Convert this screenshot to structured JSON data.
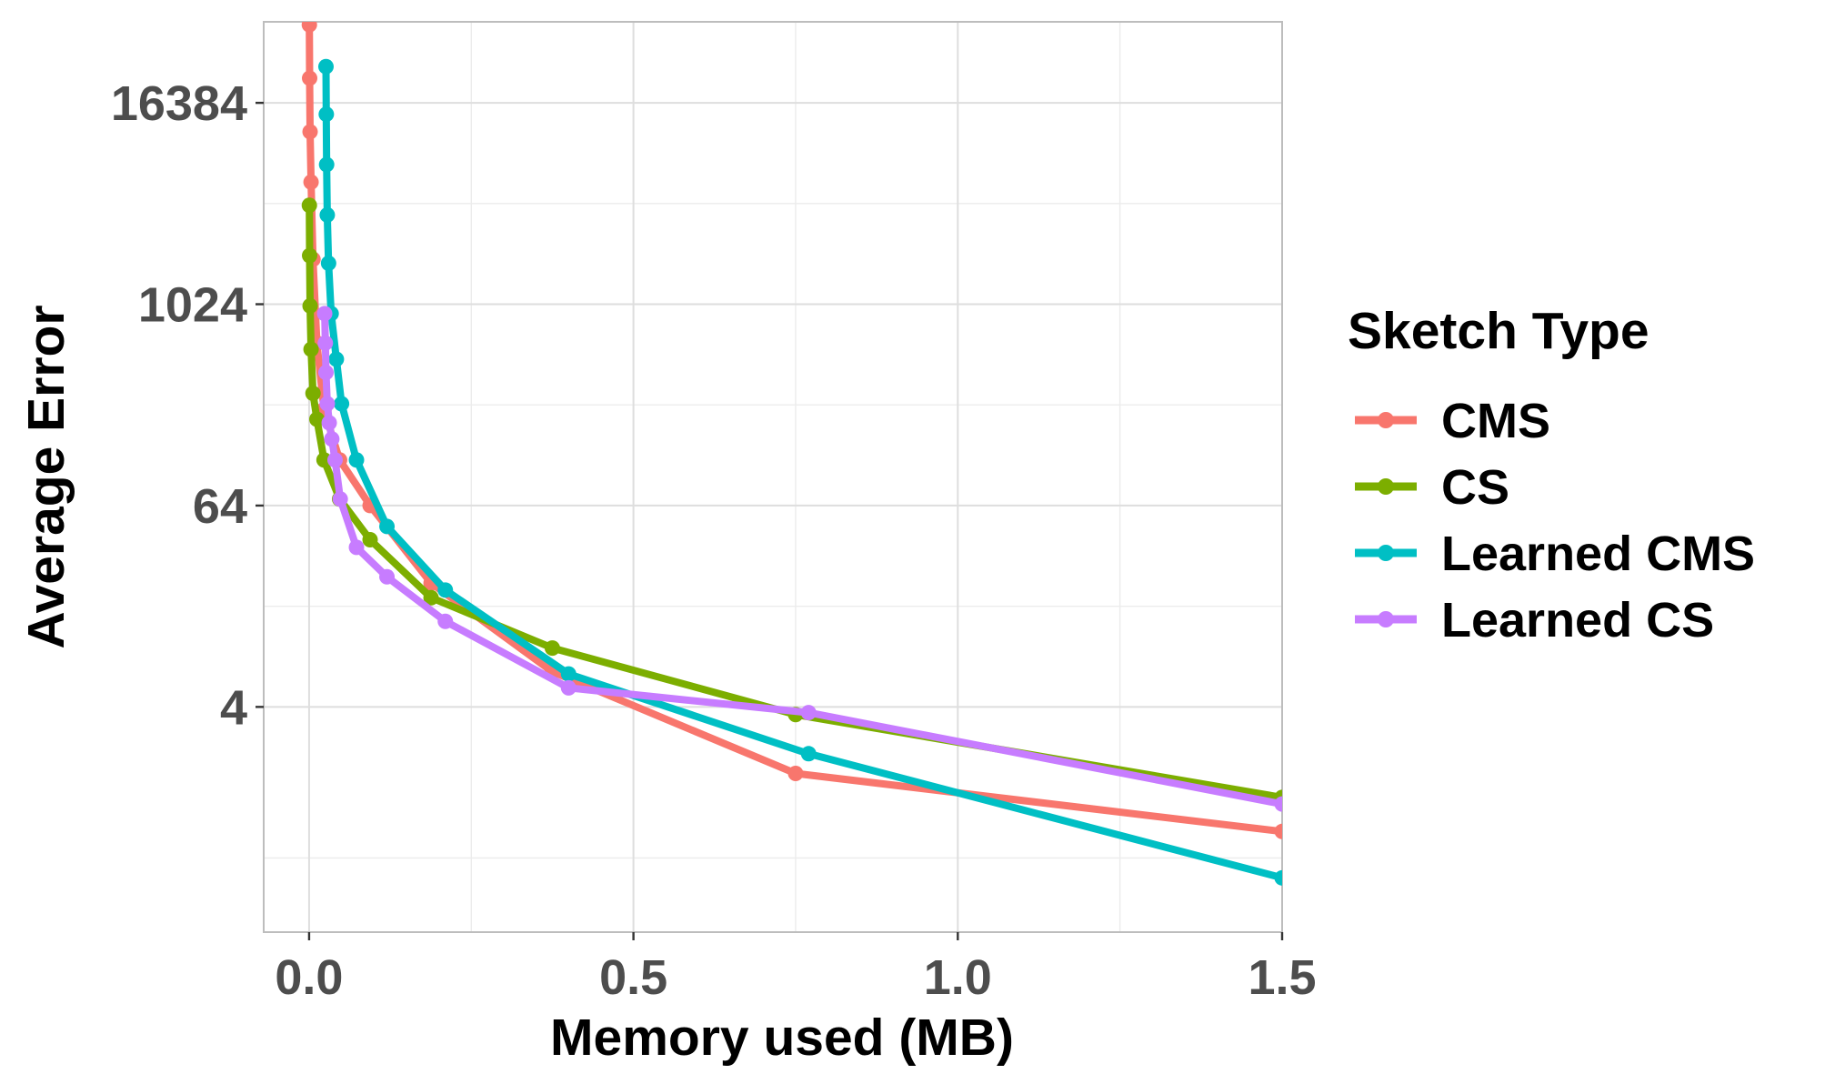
{
  "chart_data": {
    "type": "line",
    "xlabel": "Memory used (MB)",
    "ylabel": "Average Error",
    "y_scale": "log2",
    "xlim": [
      -0.07,
      1.5
    ],
    "ylim": [
      0.18,
      50000
    ],
    "x_ticks": [
      0.0,
      0.5,
      1.0,
      1.5
    ],
    "x_tick_labels": [
      "0.0",
      "0.5",
      "1.0",
      "1.5"
    ],
    "y_ticks": [
      4,
      64,
      1024,
      16384
    ],
    "y_tick_labels": [
      "4",
      "64",
      "1024",
      "16384"
    ],
    "grid": true,
    "legend": {
      "title": "Sketch Type",
      "position": "right"
    },
    "series": [
      {
        "name": "CMS",
        "color": "#F8766D",
        "x": [
          0.0004,
          0.0008,
          0.0015,
          0.003,
          0.006,
          0.012,
          0.023,
          0.047,
          0.094,
          0.188,
          0.375,
          0.75,
          1.5
        ],
        "y": [
          48000,
          23000,
          11000,
          5500,
          1900,
          600,
          240,
          120,
          64,
          22,
          6.5,
          1.6,
          0.72
        ]
      },
      {
        "name": "CS",
        "color": "#7CAE00",
        "x": [
          0.0004,
          0.0008,
          0.0015,
          0.003,
          0.006,
          0.012,
          0.023,
          0.047,
          0.094,
          0.188,
          0.375,
          0.75,
          1.5
        ],
        "y": [
          4000,
          2000,
          1000,
          550,
          300,
          210,
          120,
          70,
          40,
          18,
          9,
          3.6,
          1.15
        ]
      },
      {
        "name": "Learned CMS",
        "color": "#00BFC4",
        "x": [
          0.026,
          0.0265,
          0.027,
          0.028,
          0.03,
          0.034,
          0.042,
          0.05,
          0.073,
          0.12,
          0.21,
          0.4,
          0.77,
          1.5
        ],
        "y": [
          27000,
          14000,
          7000,
          3500,
          1800,
          900,
          480,
          260,
          120,
          48,
          20,
          6.3,
          2.1,
          0.38
        ]
      },
      {
        "name": "Learned CS",
        "color": "#C77CFF",
        "x": [
          0.024,
          0.025,
          0.026,
          0.028,
          0.031,
          0.035,
          0.04,
          0.048,
          0.073,
          0.12,
          0.21,
          0.4,
          0.77,
          1.5
        ],
        "y": [
          900,
          600,
          400,
          260,
          200,
          160,
          120,
          70,
          36,
          24,
          13,
          5.2,
          3.7,
          1.05
        ]
      }
    ]
  }
}
